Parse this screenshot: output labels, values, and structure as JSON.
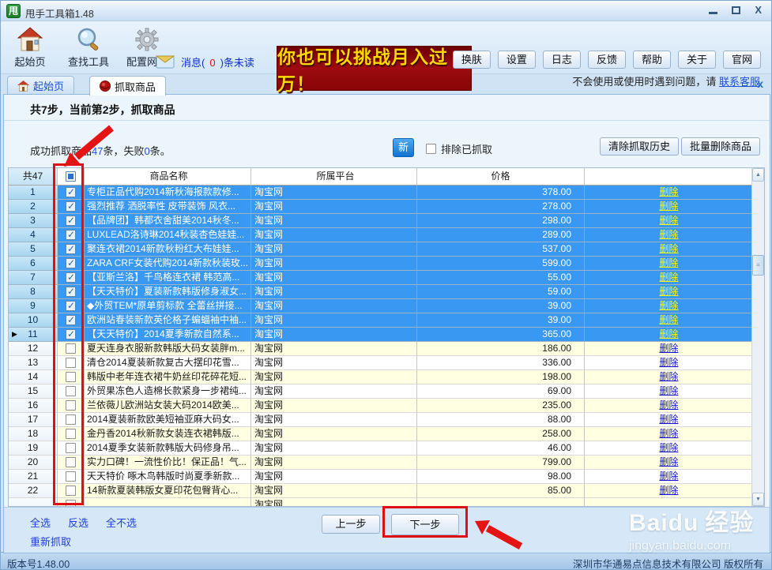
{
  "window": {
    "title": "甩手工具箱1.48",
    "app_icon_text": "甩",
    "controls": [
      "minimize-icon",
      "maximize-icon",
      "close-icon"
    ]
  },
  "toolbar": {
    "items": [
      {
        "label": "起始页",
        "icon": "home-icon"
      },
      {
        "label": "查找工具",
        "icon": "search-icon"
      },
      {
        "label": "配置网店",
        "icon": "gear-icon"
      }
    ],
    "message": {
      "prefix": "消息(",
      "count": "0",
      "suffix": ")条未读",
      "icon": "mail-icon"
    },
    "banner_text": "你也可以挑战月入过万！",
    "buttons": [
      "换肤",
      "设置",
      "日志",
      "反馈",
      "帮助",
      "关于",
      "官网"
    ],
    "help_text": "不会使用或使用时遇到问题，请",
    "help_link": "联系客服"
  },
  "tabs": [
    {
      "label": "起始页",
      "icon": "home-icon",
      "active": false
    },
    {
      "label": "抓取商品",
      "icon": "grab-icon",
      "active": true
    }
  ],
  "content": {
    "step_title": "共7步，当前第2步，抓取商品",
    "status": {
      "pre": "成功抓取商品",
      "success_count": "47",
      "mid": "条，失败",
      "fail_count": "0",
      "post": "条。"
    },
    "new_badge": "新",
    "exclude_label": "排除已抓取",
    "clear_button": "清除抓取历史",
    "batch_delete_button": "批量删除商品",
    "table": {
      "count_header": "共47",
      "columns": {
        "name": "商品名称",
        "platform": "所属平台",
        "price": "价格"
      },
      "delete_label": "删除",
      "rows": [
        {
          "num": "1",
          "name": "专柜正品代购2014新秋海报款款修...",
          "platform": "淘宝网",
          "price": "378.00",
          "checked": true,
          "selected": true,
          "current": false
        },
        {
          "num": "2",
          "name": "强烈推荐 洒脱率性  皮带装饰 风衣...",
          "platform": "淘宝网",
          "price": "278.00",
          "checked": true,
          "selected": true,
          "current": false
        },
        {
          "num": "3",
          "name": "【品牌团】韩都衣舍甜美2014秋冬...",
          "platform": "淘宝网",
          "price": "298.00",
          "checked": true,
          "selected": true,
          "current": false
        },
        {
          "num": "4",
          "name": "LUXLEAD洛诗琳2014秋装杏色娃娃...",
          "platform": "淘宝网",
          "price": "289.00",
          "checked": true,
          "selected": true,
          "current": false
        },
        {
          "num": "5",
          "name": "聚连衣裙2014新款秋粉红大布娃娃...",
          "platform": "淘宝网",
          "price": "537.00",
          "checked": true,
          "selected": true,
          "current": false
        },
        {
          "num": "6",
          "name": "ZARA CRF女装代购2014新款秋装玫...",
          "platform": "淘宝网",
          "price": "599.00",
          "checked": true,
          "selected": true,
          "current": false
        },
        {
          "num": "7",
          "name": "【亚斯兰洛】千鸟格连衣裙 韩范高...",
          "platform": "淘宝网",
          "price": "55.00",
          "checked": true,
          "selected": true,
          "current": false
        },
        {
          "num": "8",
          "name": "【天天特价】夏装新款韩版修身淑女...",
          "platform": "淘宝网",
          "price": "59.00",
          "checked": true,
          "selected": true,
          "current": false
        },
        {
          "num": "9",
          "name": "◆外贸TEM*原单剪标款 全蕾丝拼接...",
          "platform": "淘宝网",
          "price": "39.00",
          "checked": true,
          "selected": true,
          "current": false
        },
        {
          "num": "10",
          "name": "欧洲站春装新款英伦格子蝙蝠袖中袖...",
          "platform": "淘宝网",
          "price": "39.00",
          "checked": true,
          "selected": true,
          "current": false
        },
        {
          "num": "11",
          "name": "【天天特价】2014夏季新款自然系...",
          "platform": "淘宝网",
          "price": "365.00",
          "checked": true,
          "selected": true,
          "current": true
        },
        {
          "num": "12",
          "name": "夏天连身衣服新款韩版大码女装胖m...",
          "platform": "淘宝网",
          "price": "186.00",
          "checked": false,
          "selected": false,
          "current": false
        },
        {
          "num": "13",
          "name": "清仓2014夏装新款复古大摆印花雪...",
          "platform": "淘宝网",
          "price": "336.00",
          "checked": false,
          "selected": false,
          "current": false
        },
        {
          "num": "14",
          "name": "韩版中老年连衣裙牛奶丝印花碎花短...",
          "platform": "淘宝网",
          "price": "198.00",
          "checked": false,
          "selected": false,
          "current": false
        },
        {
          "num": "15",
          "name": "外贸果冻色人造棉长款紧身一步裙纯...",
          "platform": "淘宝网",
          "price": "69.00",
          "checked": false,
          "selected": false,
          "current": false
        },
        {
          "num": "16",
          "name": "兰依薇儿欧洲站女装大码2014欧美...",
          "platform": "淘宝网",
          "price": "235.00",
          "checked": false,
          "selected": false,
          "current": false
        },
        {
          "num": "17",
          "name": "2014夏装新款欧美短袖亚麻大码女...",
          "platform": "淘宝网",
          "price": "88.00",
          "checked": false,
          "selected": false,
          "current": false
        },
        {
          "num": "18",
          "name": "金丹香2014秋新款女装连衣裙韩版...",
          "platform": "淘宝网",
          "price": "258.00",
          "checked": false,
          "selected": false,
          "current": false
        },
        {
          "num": "19",
          "name": "2014夏季女装新款韩版大码修身吊...",
          "platform": "淘宝网",
          "price": "46.00",
          "checked": false,
          "selected": false,
          "current": false
        },
        {
          "num": "20",
          "name": "实力口碑！一流性价比！保正品！气...",
          "platform": "淘宝网",
          "price": "799.00",
          "checked": false,
          "selected": false,
          "current": false
        },
        {
          "num": "21",
          "name": "天天特价 啄木鸟韩版时尚夏季新款...",
          "platform": "淘宝网",
          "price": "98.00",
          "checked": false,
          "selected": false,
          "current": false
        },
        {
          "num": "22",
          "name": "14新款夏装韩版女夏印花包臀背心...",
          "platform": "淘宝网",
          "price": "85.00",
          "checked": false,
          "selected": false,
          "current": false
        },
        {
          "num": "",
          "name": "",
          "platform": "淘宝网",
          "price": "",
          "checked": false,
          "selected": false,
          "current": false
        }
      ]
    },
    "select_links": [
      "全选",
      "反选",
      "全不选"
    ],
    "refetch_link": "重新抓取",
    "prev_button": "上一步",
    "next_button": "下一步"
  },
  "statusbar": {
    "version": "版本号1.48.00",
    "copyright": "深圳市华通易点信息技术有限公司 版权所有"
  },
  "watermark": {
    "brand": "Baidu",
    "suffix": "经验",
    "url": "jingyan.baidu.com"
  },
  "colors": {
    "selected_row": "#3898F2",
    "stripe_row": "#FFFFE1",
    "banner_bg": "#9E0B0F",
    "banner_text": "#FFD800",
    "annotation_red": "#E01010",
    "link_blue": "#1F3FD8",
    "delete_link_selected": "#FFFF00",
    "new_badge_bg": "#1273D0"
  }
}
